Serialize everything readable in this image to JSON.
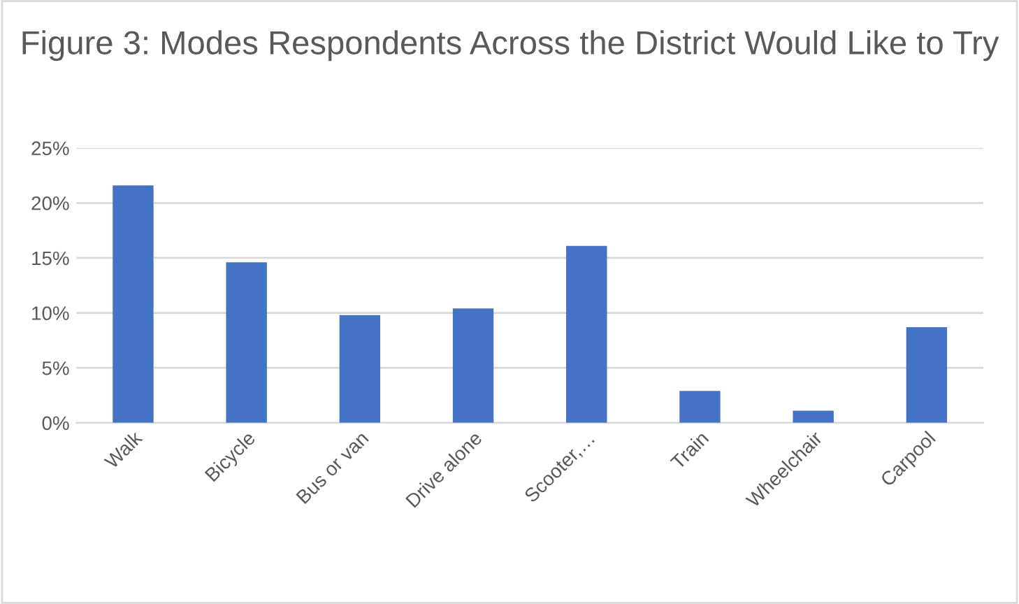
{
  "chart_data": {
    "type": "bar",
    "title": "Figure 3: Modes Respondents Across the District Would Like to Try",
    "categories": [
      "Walk",
      "Bicycle",
      "Bus or van",
      "Drive alone",
      "Scooter,…",
      "Train",
      "Wheelchair",
      "Carpool"
    ],
    "values": [
      21.6,
      14.6,
      9.8,
      10.4,
      16.1,
      2.9,
      1.1,
      8.7
    ],
    "color": "#4472c4",
    "ylim": [
      0,
      25
    ],
    "yticks": [
      {
        "value": 0,
        "label": "0%"
      },
      {
        "value": 5,
        "label": "5%"
      },
      {
        "value": 10,
        "label": "10%"
      },
      {
        "value": 15,
        "label": "15%"
      },
      {
        "value": 20,
        "label": "20%"
      },
      {
        "value": 25,
        "label": "25%"
      }
    ],
    "grid": "y",
    "legend": false
  }
}
